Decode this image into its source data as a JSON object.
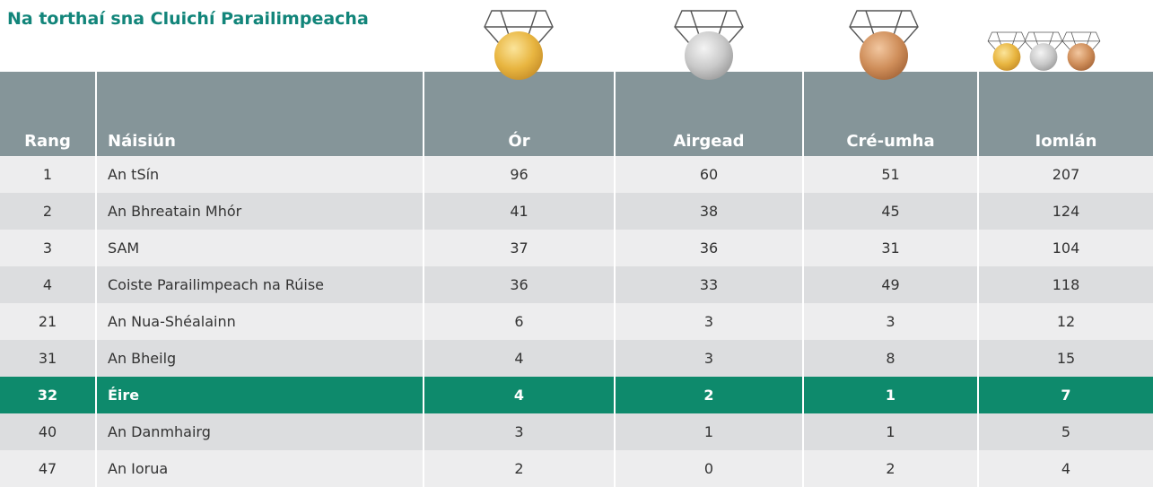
{
  "title": "Na torthaí sna Cluichí Parailimpeacha",
  "table": {
    "header": [
      "Rang",
      "Náisiún",
      "Ór",
      "Airgead",
      "Cré-umha",
      "Iomlán"
    ],
    "rows": [
      [
        1,
        "An tSín",
        96,
        60,
        51,
        207
      ],
      [
        2,
        "An Bhreatain Mhór",
        41,
        38,
        45,
        124
      ],
      [
        3,
        "SAM",
        37,
        36,
        31,
        104
      ],
      [
        4,
        "Coiste Parailimpeach na Rúise",
        36,
        33,
        49,
        118
      ],
      [
        21,
        "An Nua-Shéalainn",
        6,
        3,
        3,
        12
      ],
      [
        31,
        "An Bheilg",
        4,
        3,
        8,
        15
      ],
      [
        32,
        "Éire",
        4,
        2,
        1,
        7
      ],
      [
        40,
        "An Danmhairg",
        3,
        1,
        1,
        5
      ],
      [
        47,
        "An Iorua",
        2,
        0,
        2,
        4
      ]
    ]
  }
}
